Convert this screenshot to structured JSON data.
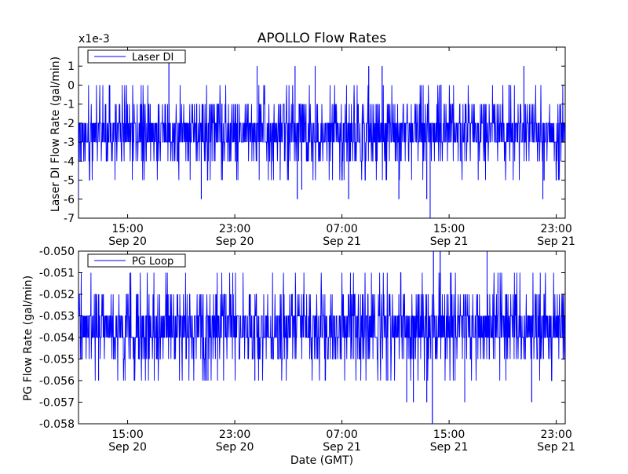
{
  "title": "APOLLO Flow Rates",
  "x_axis_label": "Date (GMT)",
  "chart_data": [
    {
      "type": "line",
      "ylabel": "Laser DI Flow Rate (gal/min)",
      "y_multiplier_label": "x1e-3",
      "ylim": [
        -7,
        2
      ],
      "y_ticks": [
        "1",
        "0",
        "-1",
        "-2",
        "-3",
        "-4",
        "-5",
        "-6",
        "-7"
      ],
      "x_ticks": [
        {
          "time": "15:00",
          "date": "Sep 20"
        },
        {
          "time": "23:00",
          "date": "Sep 20"
        },
        {
          "time": "07:00",
          "date": "Sep 21"
        },
        {
          "time": "15:00",
          "date": "Sep 21"
        },
        {
          "time": "23:00",
          "date": "Sep 21"
        }
      ],
      "xlim": [
        "Sep 20 11:20",
        "Sep 21 23:40"
      ],
      "legend": {
        "label": "Laser DI",
        "position": "top-left"
      },
      "series": [
        {
          "name": "Laser DI",
          "color": "#0000ff",
          "baseline_band": [
            -3,
            -2
          ],
          "frequent_spikes": [
            -1,
            -4
          ],
          "occasional_spikes": [
            0,
            -5
          ],
          "rare_extremes": [
            {
              "x": "Sep 20 11:20",
              "y": -6
            },
            {
              "x": "Sep 20 18:05",
              "y": 1.5
            },
            {
              "x": "Sep 20 20:30",
              "y": -6
            },
            {
              "x": "Sep 21 00:40",
              "y": 1
            },
            {
              "x": "Sep 21 03:30",
              "y": 1
            },
            {
              "x": "Sep 21 03:40",
              "y": -6
            },
            {
              "x": "Sep 21 04:00",
              "y": -5.5
            },
            {
              "x": "Sep 21 05:00",
              "y": 1
            },
            {
              "x": "Sep 21 07:30",
              "y": -6
            },
            {
              "x": "Sep 21 09:00",
              "y": 1
            },
            {
              "x": "Sep 21 10:00",
              "y": 1
            },
            {
              "x": "Sep 21 11:15",
              "y": -6
            },
            {
              "x": "Sep 21 13:20",
              "y": -6
            },
            {
              "x": "Sep 21 13:35",
              "y": -7
            },
            {
              "x": "Sep 21 20:35",
              "y": 1
            },
            {
              "x": "Sep 21 22:00",
              "y": -6
            }
          ]
        }
      ]
    },
    {
      "type": "line",
      "ylabel": "PG Flow Rate (gal/min)",
      "ylim": [
        -0.058,
        -0.05
      ],
      "y_ticks": [
        "-0.050",
        "-0.051",
        "-0.052",
        "-0.053",
        "-0.054",
        "-0.055",
        "-0.056",
        "-0.057",
        "-0.058"
      ],
      "x_ticks": [
        {
          "time": "15:00",
          "date": "Sep 20"
        },
        {
          "time": "23:00",
          "date": "Sep 20"
        },
        {
          "time": "07:00",
          "date": "Sep 21"
        },
        {
          "time": "15:00",
          "date": "Sep 21"
        },
        {
          "time": "23:00",
          "date": "Sep 21"
        }
      ],
      "xlim": [
        "Sep 20 11:20",
        "Sep 21 23:40"
      ],
      "legend": {
        "label": "PG Loop",
        "position": "top-left"
      },
      "series": [
        {
          "name": "PG Loop",
          "color": "#0000ff",
          "baseline_band": [
            -0.054,
            -0.053
          ],
          "frequent_spikes": [
            -0.052,
            -0.055
          ],
          "occasional_spikes": [
            -0.051,
            -0.056
          ],
          "rare_extremes": [
            {
              "x": "Sep 20 12:50",
              "y": -0.056
            },
            {
              "x": "Sep 20 21:00",
              "y": -0.056
            },
            {
              "x": "Sep 21 00:30",
              "y": -0.056
            },
            {
              "x": "Sep 21 05:45",
              "y": -0.056
            },
            {
              "x": "Sep 21 10:25",
              "y": -0.056
            },
            {
              "x": "Sep 21 11:50",
              "y": -0.057
            },
            {
              "x": "Sep 21 12:20",
              "y": -0.057
            },
            {
              "x": "Sep 21 13:20",
              "y": -0.057
            },
            {
              "x": "Sep 21 13:45",
              "y": -0.058
            },
            {
              "x": "Sep 21 13:50",
              "y": -0.05
            },
            {
              "x": "Sep 21 14:20",
              "y": -0.05
            },
            {
              "x": "Sep 21 16:10",
              "y": -0.057
            },
            {
              "x": "Sep 21 17:50",
              "y": -0.05
            },
            {
              "x": "Sep 21 21:10",
              "y": -0.057
            }
          ]
        }
      ]
    }
  ]
}
